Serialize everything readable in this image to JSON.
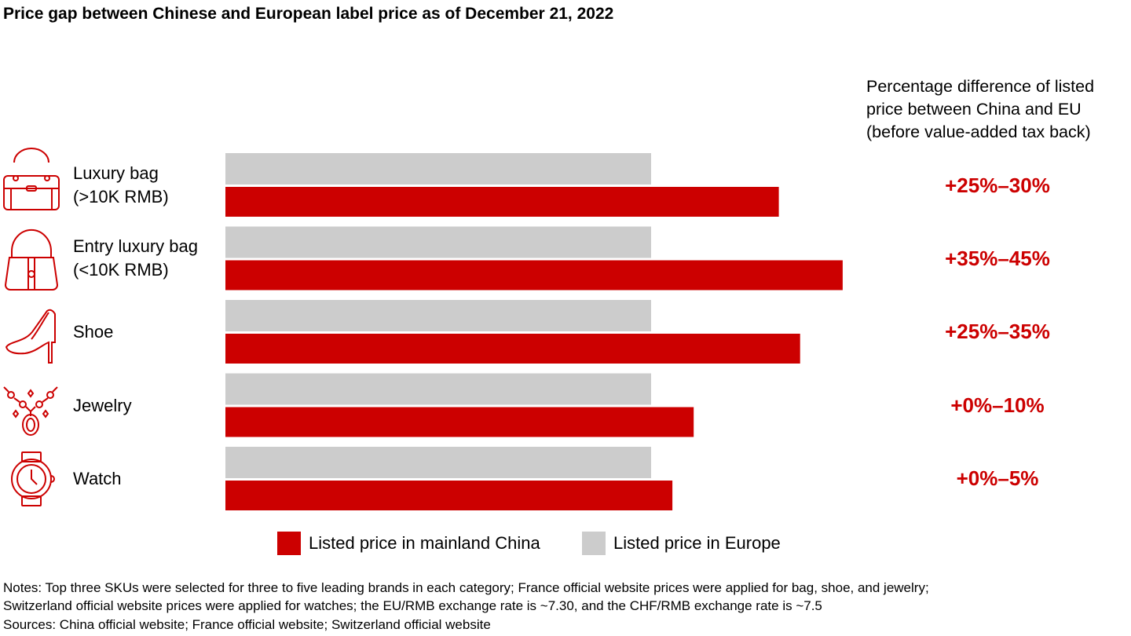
{
  "chart_data": {
    "type": "bar",
    "orientation": "horizontal",
    "title": "Price gap between Chinese and European label price as of December 21, 2022",
    "right_header": [
      "Percentage difference of listed",
      "price between China and EU",
      "(before value-added tax back)"
    ],
    "categories": [
      {
        "line1": "Luxury bag",
        "line2": "(>10K RMB)",
        "icon": "handbag-icon"
      },
      {
        "line1": "Entry luxury bag",
        "line2": "(<10K RMB)",
        "icon": "purse-icon"
      },
      {
        "line1": "Shoe",
        "line2": "",
        "icon": "high-heel-icon"
      },
      {
        "line1": "Jewelry",
        "line2": "",
        "icon": "necklace-icon"
      },
      {
        "line1": "Watch",
        "line2": "",
        "icon": "watch-icon"
      }
    ],
    "series": [
      {
        "name": "Listed price in Europe",
        "color": "#cccccc",
        "values": [
          100,
          100,
          100,
          100,
          100
        ]
      },
      {
        "name": "Listed price in mainland China",
        "color": "#cc0000",
        "values": [
          130,
          145,
          135,
          110,
          105
        ]
      }
    ],
    "annotations": [
      "+25%–30%",
      "+35%–45%",
      "+25%–35%",
      "+0%–10%",
      "+0%–5%"
    ],
    "legend": {
      "placement": "bottom",
      "items": [
        "Listed price in mainland China",
        "Listed price in Europe"
      ]
    },
    "grid": false
  },
  "notes": [
    "Notes: Top three SKUs were selected for three to five leading brands in each category; France official website prices were applied for bag, shoe, and jewelry;",
    "Switzerland official website prices were applied for watches; the EU/RMB exchange rate is ~7.30, and the CHF/RMB exchange rate is ~7.5",
    "Sources: China official website; France official website; Switzerland official website"
  ]
}
